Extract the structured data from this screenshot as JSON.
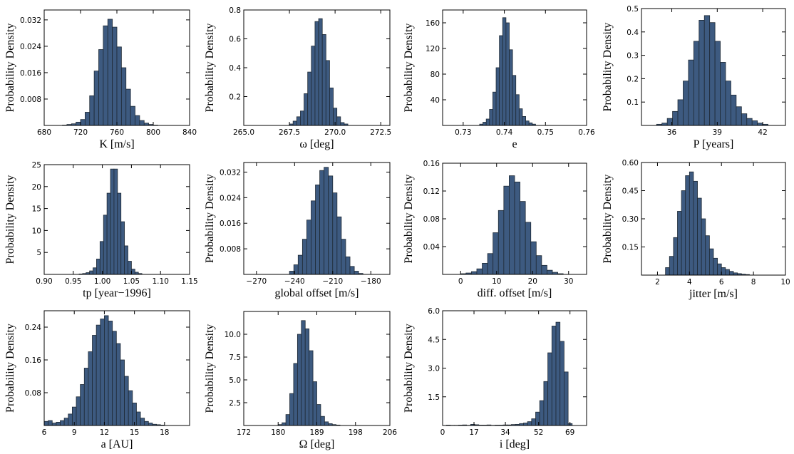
{
  "colors": {
    "bar_fill": "#3d5a80",
    "bar_edge": "#1f2a35",
    "axis": "#000000"
  },
  "ylabel_common": "Probability Density",
  "chart_data": [
    {
      "type": "bar",
      "panel": "K",
      "xlabel": "K [m/s]",
      "ylabel": "Probability Density",
      "xlim": [
        680,
        840
      ],
      "ylim": [
        0,
        0.035
      ],
      "xticks": [
        680,
        720,
        760,
        800,
        840
      ],
      "yticks": [
        0.008,
        0.016,
        0.024,
        0.032
      ],
      "xtick_labels": [
        "680",
        "720",
        "760",
        "800",
        "840"
      ],
      "ytick_labels": [
        "0.008",
        "0.016",
        "0.024",
        "0.032"
      ],
      "bin_start": 700,
      "bin_width": 5,
      "values": [
        0.0001,
        0.0003,
        0.0005,
        0.001,
        0.0018,
        0.004,
        0.009,
        0.0165,
        0.023,
        0.0302,
        0.0322,
        0.0298,
        0.0238,
        0.0175,
        0.011,
        0.0058,
        0.003,
        0.0015,
        0.0007,
        0.0003,
        0.0001
      ]
    },
    {
      "type": "bar",
      "panel": "omega",
      "xlabel": "ω [deg]",
      "ylabel": "Probability Density",
      "xlim": [
        265.0,
        273.0
      ],
      "ylim": [
        0,
        0.8
      ],
      "xticks": [
        265.0,
        267.5,
        270.0,
        272.5
      ],
      "yticks": [
        0.2,
        0.4,
        0.6,
        0.8
      ],
      "xtick_labels": [
        "265.0",
        "267.5",
        "270.0",
        "272.5"
      ],
      "ytick_labels": [
        "0.2",
        "0.4",
        "0.6",
        "0.8"
      ],
      "bin_start": 267.5,
      "bin_width": 0.2,
      "values": [
        0.01,
        0.03,
        0.06,
        0.1,
        0.22,
        0.37,
        0.55,
        0.72,
        0.74,
        0.63,
        0.45,
        0.26,
        0.12,
        0.06,
        0.02,
        0.01
      ]
    },
    {
      "type": "bar",
      "panel": "e",
      "xlabel": "e",
      "ylabel": "Probability Density",
      "xlim": [
        0.725,
        0.76
      ],
      "ylim": [
        0,
        180
      ],
      "xticks": [
        0.73,
        0.74,
        0.75,
        0.76
      ],
      "yticks": [
        40,
        80,
        120,
        160
      ],
      "xtick_labels": [
        "0.73",
        "0.74",
        "0.75",
        "0.76"
      ],
      "ytick_labels": [
        "40",
        "80",
        "120",
        "160"
      ],
      "bin_start": 0.734,
      "bin_width": 0.0008,
      "values": [
        2,
        5,
        10,
        25,
        52,
        90,
        140,
        168,
        160,
        118,
        78,
        48,
        26,
        14,
        7,
        4,
        2
      ]
    },
    {
      "type": "bar",
      "panel": "P",
      "xlabel": "P [years]",
      "ylabel": "Probability Density",
      "xlim": [
        34,
        43.5
      ],
      "ylim": [
        0,
        0.5
      ],
      "xticks": [
        36,
        39,
        42
      ],
      "yticks": [
        0.1,
        0.2,
        0.3,
        0.4,
        0.5
      ],
      "xtick_labels": [
        "36",
        "39",
        "42"
      ],
      "ytick_labels": [
        "0.1",
        "0.2",
        "0.3",
        "0.4",
        "0.5"
      ],
      "bin_start": 35,
      "bin_width": 0.35,
      "values": [
        0.005,
        0.01,
        0.03,
        0.06,
        0.11,
        0.19,
        0.28,
        0.36,
        0.45,
        0.47,
        0.44,
        0.36,
        0.27,
        0.19,
        0.13,
        0.08,
        0.05,
        0.03,
        0.02,
        0.01,
        0.005
      ]
    },
    {
      "type": "bar",
      "panel": "tp",
      "xlabel": "tp [year−1996]",
      "ylabel": "Probability Density",
      "xlim": [
        0.9,
        1.15
      ],
      "ylim": [
        0,
        25
      ],
      "xticks": [
        0.9,
        0.95,
        1.0,
        1.05,
        1.1,
        1.15
      ],
      "yticks": [
        5,
        10,
        15,
        20,
        25
      ],
      "xtick_labels": [
        "0.90",
        "0.95",
        "1.00",
        "1.05",
        "1.10",
        "1.15"
      ],
      "ytick_labels": [
        "5",
        "10",
        "15",
        "20",
        "25"
      ],
      "bin_start": 0.96,
      "bin_width": 0.006,
      "values": [
        0.1,
        0.2,
        0.4,
        0.8,
        1.5,
        3.5,
        7.5,
        13.5,
        18.5,
        24,
        24,
        18.5,
        12,
        6.5,
        3,
        1.2,
        0.5,
        0.2
      ]
    },
    {
      "type": "bar",
      "panel": "global-offset",
      "xlabel": "global offset [m/s]",
      "ylabel": "Probability Density",
      "xlim": [
        -280,
        -165
      ],
      "ylim": [
        0,
        0.035
      ],
      "xticks": [
        -270,
        -240,
        -210,
        -180
      ],
      "yticks": [
        0.008,
        0.016,
        0.024,
        0.032
      ],
      "xtick_labels": [
        "−270",
        "−240",
        "−210",
        "−180"
      ],
      "ytick_labels": [
        "0.008",
        "0.016",
        "0.024",
        "0.032"
      ],
      "bin_start": -244,
      "bin_width": 3.4,
      "values": [
        0.001,
        0.003,
        0.006,
        0.011,
        0.017,
        0.023,
        0.028,
        0.0325,
        0.0335,
        0.0308,
        0.0255,
        0.018,
        0.011,
        0.0055,
        0.0025,
        0.001,
        0.0003
      ]
    },
    {
      "type": "bar",
      "panel": "diff-offset",
      "xlabel": "diff. offset [m/s]",
      "ylabel": "Probability Density",
      "xlim": [
        -5,
        35
      ],
      "ylim": [
        0,
        0.16
      ],
      "xticks": [
        0,
        10,
        20,
        30
      ],
      "yticks": [
        0.04,
        0.08,
        0.12,
        0.16
      ],
      "xtick_labels": [
        "0",
        "10",
        "20",
        "30"
      ],
      "ytick_labels": [
        "0.04",
        "0.08",
        "0.12",
        "0.16"
      ],
      "bin_start": 0,
      "bin_width": 1.5,
      "values": [
        0.001,
        0.002,
        0.004,
        0.008,
        0.016,
        0.03,
        0.06,
        0.092,
        0.127,
        0.142,
        0.133,
        0.105,
        0.075,
        0.047,
        0.027,
        0.013,
        0.006,
        0.003,
        0.001
      ]
    },
    {
      "type": "bar",
      "panel": "jitter",
      "xlabel": "jitter [m/s]",
      "ylabel": "Probability Density",
      "xlim": [
        1,
        10
      ],
      "ylim": [
        0,
        0.6
      ],
      "xticks": [
        2,
        4,
        6,
        8,
        10
      ],
      "yticks": [
        0.15,
        0.3,
        0.45,
        0.6
      ],
      "xtick_labels": [
        "2",
        "4",
        "6",
        "8",
        "10"
      ],
      "ytick_labels": [
        "0.15",
        "0.30",
        "0.45",
        "0.60"
      ],
      "bin_start": 2.5,
      "bin_width": 0.25,
      "values": [
        0.04,
        0.1,
        0.2,
        0.34,
        0.45,
        0.53,
        0.55,
        0.5,
        0.41,
        0.3,
        0.21,
        0.14,
        0.09,
        0.06,
        0.04,
        0.03,
        0.02,
        0.012,
        0.008,
        0.005,
        0.003
      ]
    },
    {
      "type": "bar",
      "panel": "a",
      "xlabel": "a [AU]",
      "ylabel": "Probability Density",
      "xlim": [
        6,
        20.5
      ],
      "ylim": [
        0,
        0.28
      ],
      "xticks": [
        6,
        9,
        12,
        15,
        18
      ],
      "yticks": [
        0.08,
        0.16,
        0.24
      ],
      "xtick_labels": [
        "6",
        "9",
        "12",
        "15",
        "18"
      ],
      "ytick_labels": [
        "0.08",
        "0.16",
        "0.24"
      ],
      "bin_start": 6,
      "bin_width": 0.4,
      "values": [
        0.01,
        0.012,
        0.006,
        0.008,
        0.012,
        0.018,
        0.028,
        0.045,
        0.07,
        0.1,
        0.14,
        0.18,
        0.22,
        0.245,
        0.26,
        0.268,
        0.255,
        0.23,
        0.2,
        0.16,
        0.12,
        0.085,
        0.055,
        0.033,
        0.018,
        0.01,
        0.006,
        0.003,
        0.002,
        0.001
      ]
    },
    {
      "type": "bar",
      "panel": "Omega",
      "xlabel": "Ω [deg]",
      "ylabel": "Probability Density",
      "xlim": [
        172,
        206
      ],
      "ylim": [
        0,
        12.5
      ],
      "xticks": [
        172,
        180,
        189,
        198,
        206
      ],
      "yticks": [
        2.5,
        5.0,
        7.5,
        10.0
      ],
      "xtick_labels": [
        "172",
        "180",
        "189",
        "198",
        "206"
      ],
      "ytick_labels": [
        "2.5",
        "5.0",
        "7.5",
        "10.0"
      ],
      "bin_start": 180,
      "bin_width": 0.9,
      "values": [
        0.1,
        0.3,
        1.2,
        3.5,
        6.8,
        10.0,
        11.5,
        10.6,
        8.2,
        4.8,
        2.3,
        1.0,
        0.4,
        0.2,
        0.1,
        0.05
      ]
    },
    {
      "type": "bar",
      "panel": "i",
      "xlabel": "i [deg]",
      "ylabel": "Probability Density",
      "xlim": [
        0,
        78
      ],
      "ylim": [
        0,
        6.0
      ],
      "xticks": [
        0,
        17,
        34,
        52,
        69
      ],
      "yticks": [
        1.5,
        3.0,
        4.5,
        6.0
      ],
      "xtick_labels": [
        "0",
        "17",
        "34",
        "52",
        "69"
      ],
      "ytick_labels": [
        "1.5",
        "3.0",
        "4.5",
        "6.0"
      ],
      "bin_start": 2,
      "bin_width": 2.2,
      "values": [
        0.02,
        0.01,
        0.01,
        0.02,
        0.03,
        0.01,
        0.06,
        0.04,
        0.02,
        0.02,
        0.03,
        0.01,
        0.02,
        0.02,
        0.03,
        0.03,
        0.05,
        0.06,
        0.1,
        0.13,
        0.2,
        0.35,
        0.7,
        1.3,
        2.3,
        3.8,
        5.2,
        5.4,
        4.4,
        2.8,
        0.1
      ]
    }
  ]
}
